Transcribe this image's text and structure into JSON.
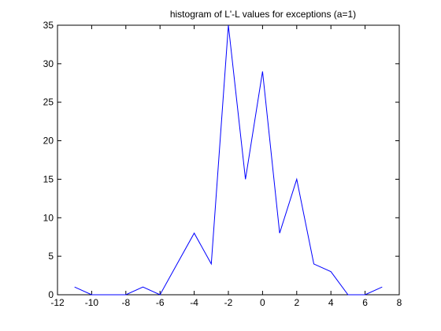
{
  "chart_data": {
    "type": "line",
    "title": "histogram of L'-L values for exceptions (a=1)",
    "xlabel": "",
    "ylabel": "",
    "xlim": [
      -12,
      8
    ],
    "ylim": [
      0,
      35
    ],
    "x_ticks": [
      -12,
      -10,
      -8,
      -6,
      -4,
      -2,
      0,
      2,
      4,
      6,
      8
    ],
    "y_ticks": [
      0,
      5,
      10,
      15,
      20,
      25,
      30,
      35
    ],
    "grid": false,
    "legend": "none",
    "line_color": "#0000ff",
    "series": [
      {
        "x": [
          -11,
          -10,
          -9,
          -8,
          -7,
          -6,
          -5,
          -4,
          -3,
          -2,
          -1,
          0,
          1,
          2,
          3,
          4,
          5,
          6,
          7
        ],
        "values": [
          1,
          0,
          0,
          0,
          1,
          0,
          4,
          8,
          4,
          35,
          15,
          29,
          8,
          15,
          4,
          3,
          0,
          0,
          1
        ]
      }
    ]
  }
}
